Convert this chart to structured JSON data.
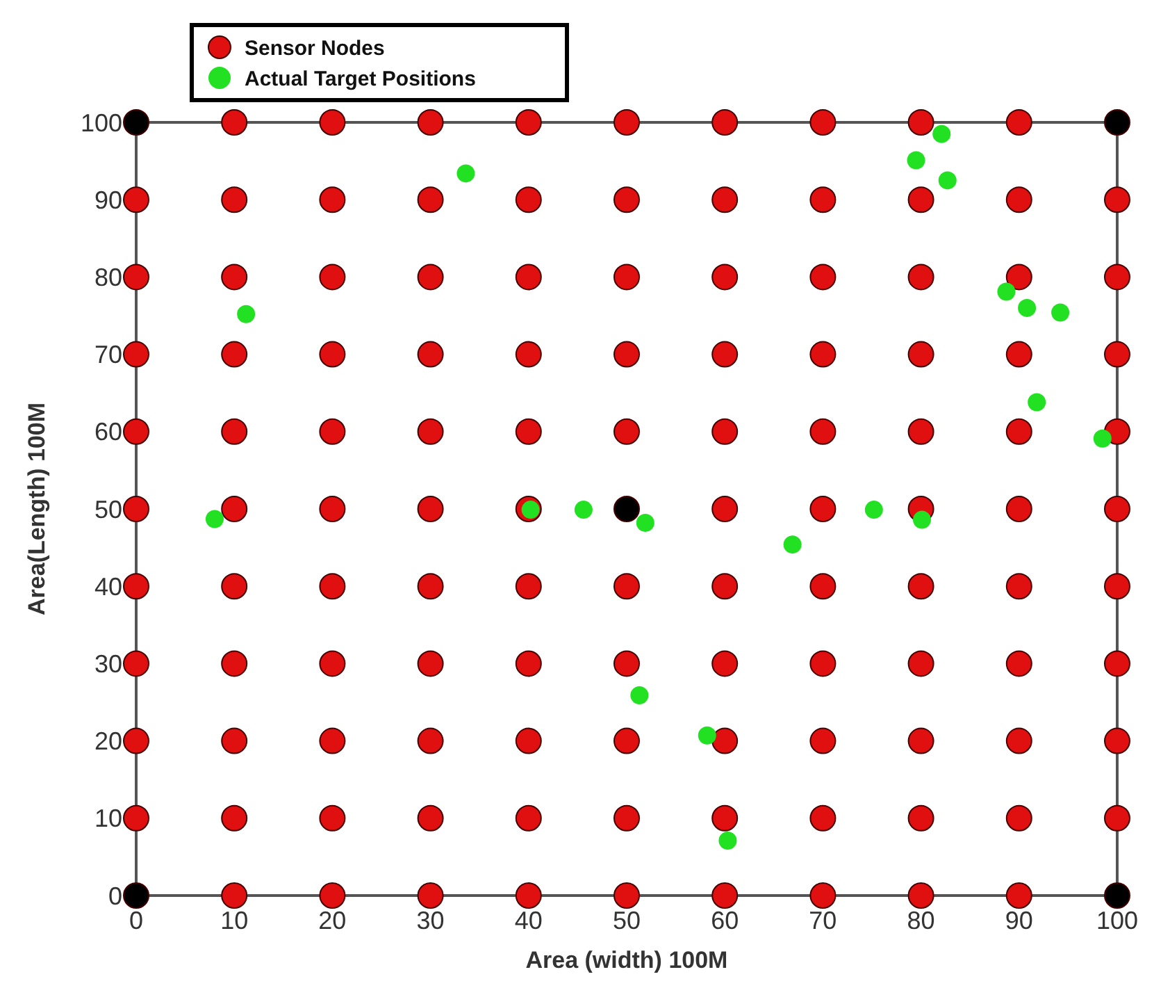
{
  "chart_data": {
    "type": "scatter",
    "xlabel": "Area (width)  100M",
    "ylabel": "Area(Length) 100M",
    "xlim": [
      0,
      100
    ],
    "ylim": [
      0,
      100
    ],
    "xticks": [
      0,
      10,
      20,
      30,
      40,
      50,
      60,
      70,
      80,
      90,
      100
    ],
    "yticks": [
      0,
      10,
      20,
      30,
      40,
      50,
      60,
      70,
      80,
      90,
      100
    ],
    "grid": false,
    "legend": "top left",
    "marker": "circle",
    "series": [
      {
        "name": "Sensor Nodes",
        "color": "#e01010",
        "x": [
          10,
          20,
          30,
          40,
          50,
          60,
          70,
          80,
          90,
          0,
          10,
          20,
          30,
          40,
          50,
          60,
          70,
          80,
          90,
          100,
          0,
          10,
          20,
          30,
          40,
          50,
          60,
          70,
          80,
          90,
          100,
          0,
          10,
          20,
          30,
          40,
          50,
          60,
          70,
          80,
          90,
          100,
          0,
          10,
          20,
          30,
          40,
          50,
          60,
          70,
          80,
          90,
          100,
          0,
          10,
          20,
          30,
          40,
          60,
          70,
          80,
          90,
          100,
          0,
          10,
          20,
          30,
          40,
          50,
          60,
          70,
          80,
          90,
          100,
          0,
          10,
          20,
          30,
          40,
          50,
          60,
          70,
          80,
          90,
          100,
          0,
          10,
          20,
          30,
          40,
          50,
          60,
          70,
          80,
          90,
          100,
          0,
          10,
          20,
          30,
          40,
          50,
          60,
          70,
          80,
          90,
          100,
          10,
          20,
          30,
          40,
          50,
          60,
          70,
          80,
          90
        ],
        "values": [
          0,
          0,
          0,
          0,
          0,
          0,
          0,
          0,
          0,
          10,
          10,
          10,
          10,
          10,
          10,
          10,
          10,
          10,
          10,
          10,
          20,
          20,
          20,
          20,
          20,
          20,
          20,
          20,
          20,
          20,
          20,
          30,
          30,
          30,
          30,
          30,
          30,
          30,
          30,
          30,
          30,
          30,
          40,
          40,
          40,
          40,
          40,
          40,
          40,
          40,
          40,
          40,
          40,
          50,
          50,
          50,
          50,
          50,
          50,
          50,
          50,
          50,
          50,
          60,
          60,
          60,
          60,
          60,
          60,
          60,
          60,
          60,
          60,
          60,
          70,
          70,
          70,
          70,
          70,
          70,
          70,
          70,
          70,
          70,
          70,
          80,
          80,
          80,
          80,
          80,
          80,
          80,
          80,
          80,
          80,
          80,
          90,
          90,
          90,
          90,
          90,
          90,
          90,
          90,
          90,
          90,
          90,
          100,
          100,
          100,
          100,
          100,
          100,
          100,
          100,
          100
        ]
      },
      {
        "color": "#000000",
        "x": [
          0,
          100,
          0,
          100,
          50
        ],
        "values": [
          0,
          0,
          100,
          100,
          50
        ]
      },
      {
        "name": "Actual Target Positions",
        "color": "#22e022",
        "x": [
          11.2,
          8.0,
          33.6,
          40.2,
          45.6,
          51.9,
          66.9,
          75.2,
          80.1,
          51.3,
          58.2,
          60.3,
          82.1,
          79.5,
          82.7,
          88.7,
          90.8,
          94.2,
          91.8,
          98.5
        ],
        "values": [
          75.2,
          48.7,
          93.4,
          49.9,
          49.9,
          48.2,
          45.4,
          49.9,
          48.6,
          25.9,
          20.7,
          7.1,
          98.5,
          95.1,
          92.5,
          78.1,
          76.0,
          75.4,
          63.8,
          59.1
        ]
      }
    ]
  }
}
